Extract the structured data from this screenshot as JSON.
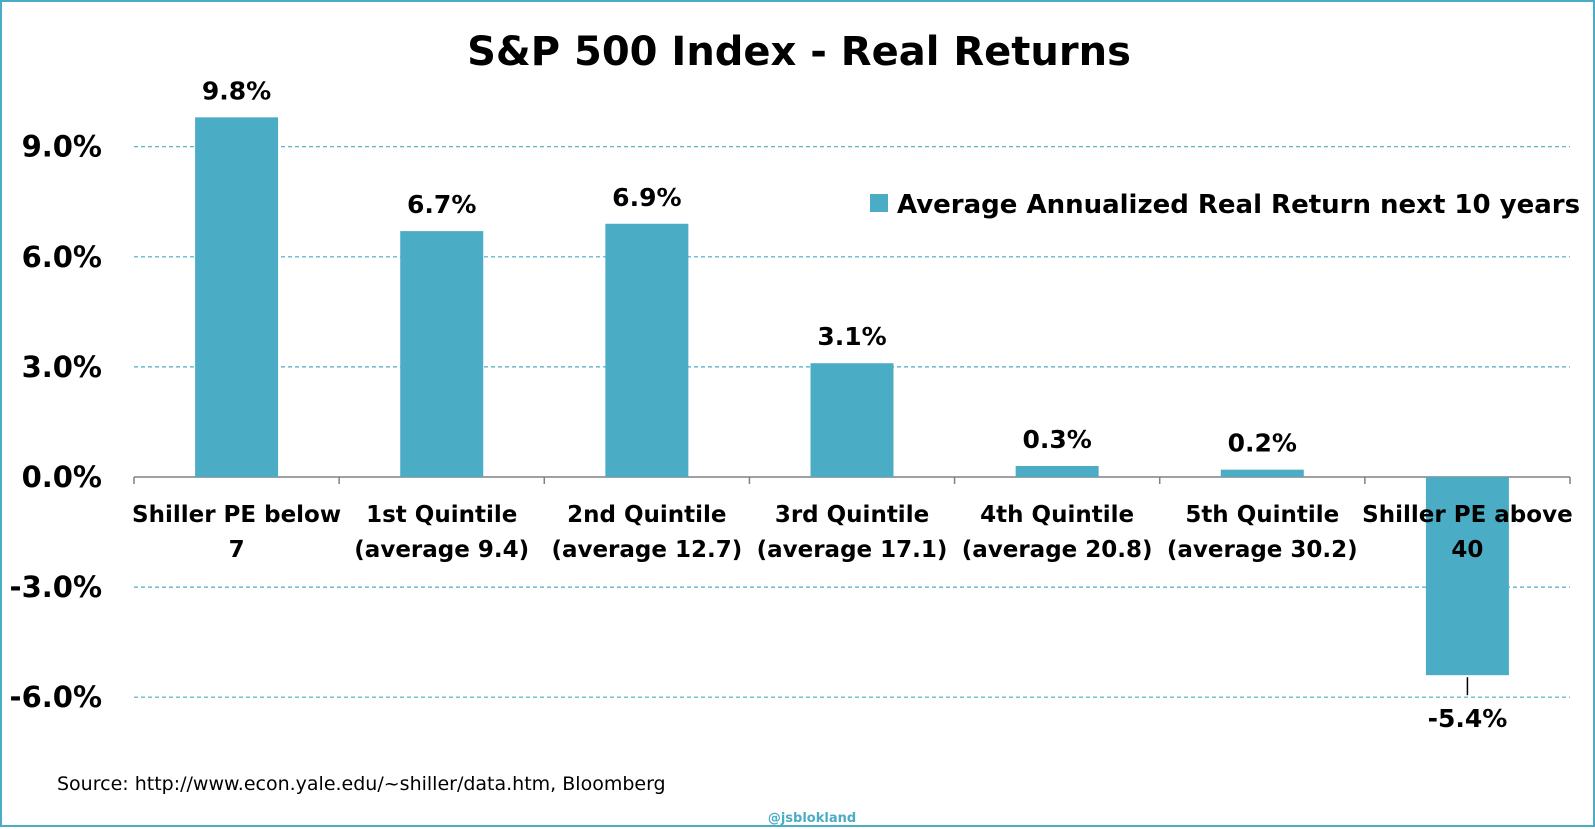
{
  "chart_data": {
    "type": "bar",
    "title": "S&P 500 Index - Real Returns",
    "categories": [
      [
        "Shiller PE below",
        "7"
      ],
      [
        "1st Quintile",
        "(average 9.4)"
      ],
      [
        "2nd Quintile",
        "(average 12.7)"
      ],
      [
        "3rd Quintile",
        "(average 17.1)"
      ],
      [
        "4th Quintile",
        "(average 20.8)"
      ],
      [
        "5th Quintile",
        "(average 30.2)"
      ],
      [
        "Shiller PE above",
        "40"
      ]
    ],
    "series": [
      {
        "name": "Average Annualized Real Return next 10 years",
        "values": [
          9.8,
          6.7,
          6.9,
          3.1,
          0.3,
          0.2,
          -5.4
        ],
        "labels": [
          "9.8%",
          "6.7%",
          "6.9%",
          "3.1%",
          "0.3%",
          "0.2%",
          "-5.4%"
        ]
      }
    ],
    "ylim": [
      -6.0,
      9.8
    ],
    "yticks": [
      9.0,
      6.0,
      3.0,
      0.0,
      -3.0,
      -6.0
    ],
    "ytick_labels": [
      "9.0%",
      "6.0%",
      "3.0%",
      "0.0%",
      "-3.0%",
      "-6.0%"
    ],
    "xlabel": "",
    "ylabel": "",
    "grid": true,
    "legend_position": "top-right",
    "colors": {
      "bar": "#4bacc6",
      "grid": "#4bacc6",
      "border": "#4bacc6"
    }
  },
  "footer": {
    "source": "Source: http://www.econ.yale.edu/~shiller/data.htm, Bloomberg",
    "watermark": "@jsblokland"
  }
}
